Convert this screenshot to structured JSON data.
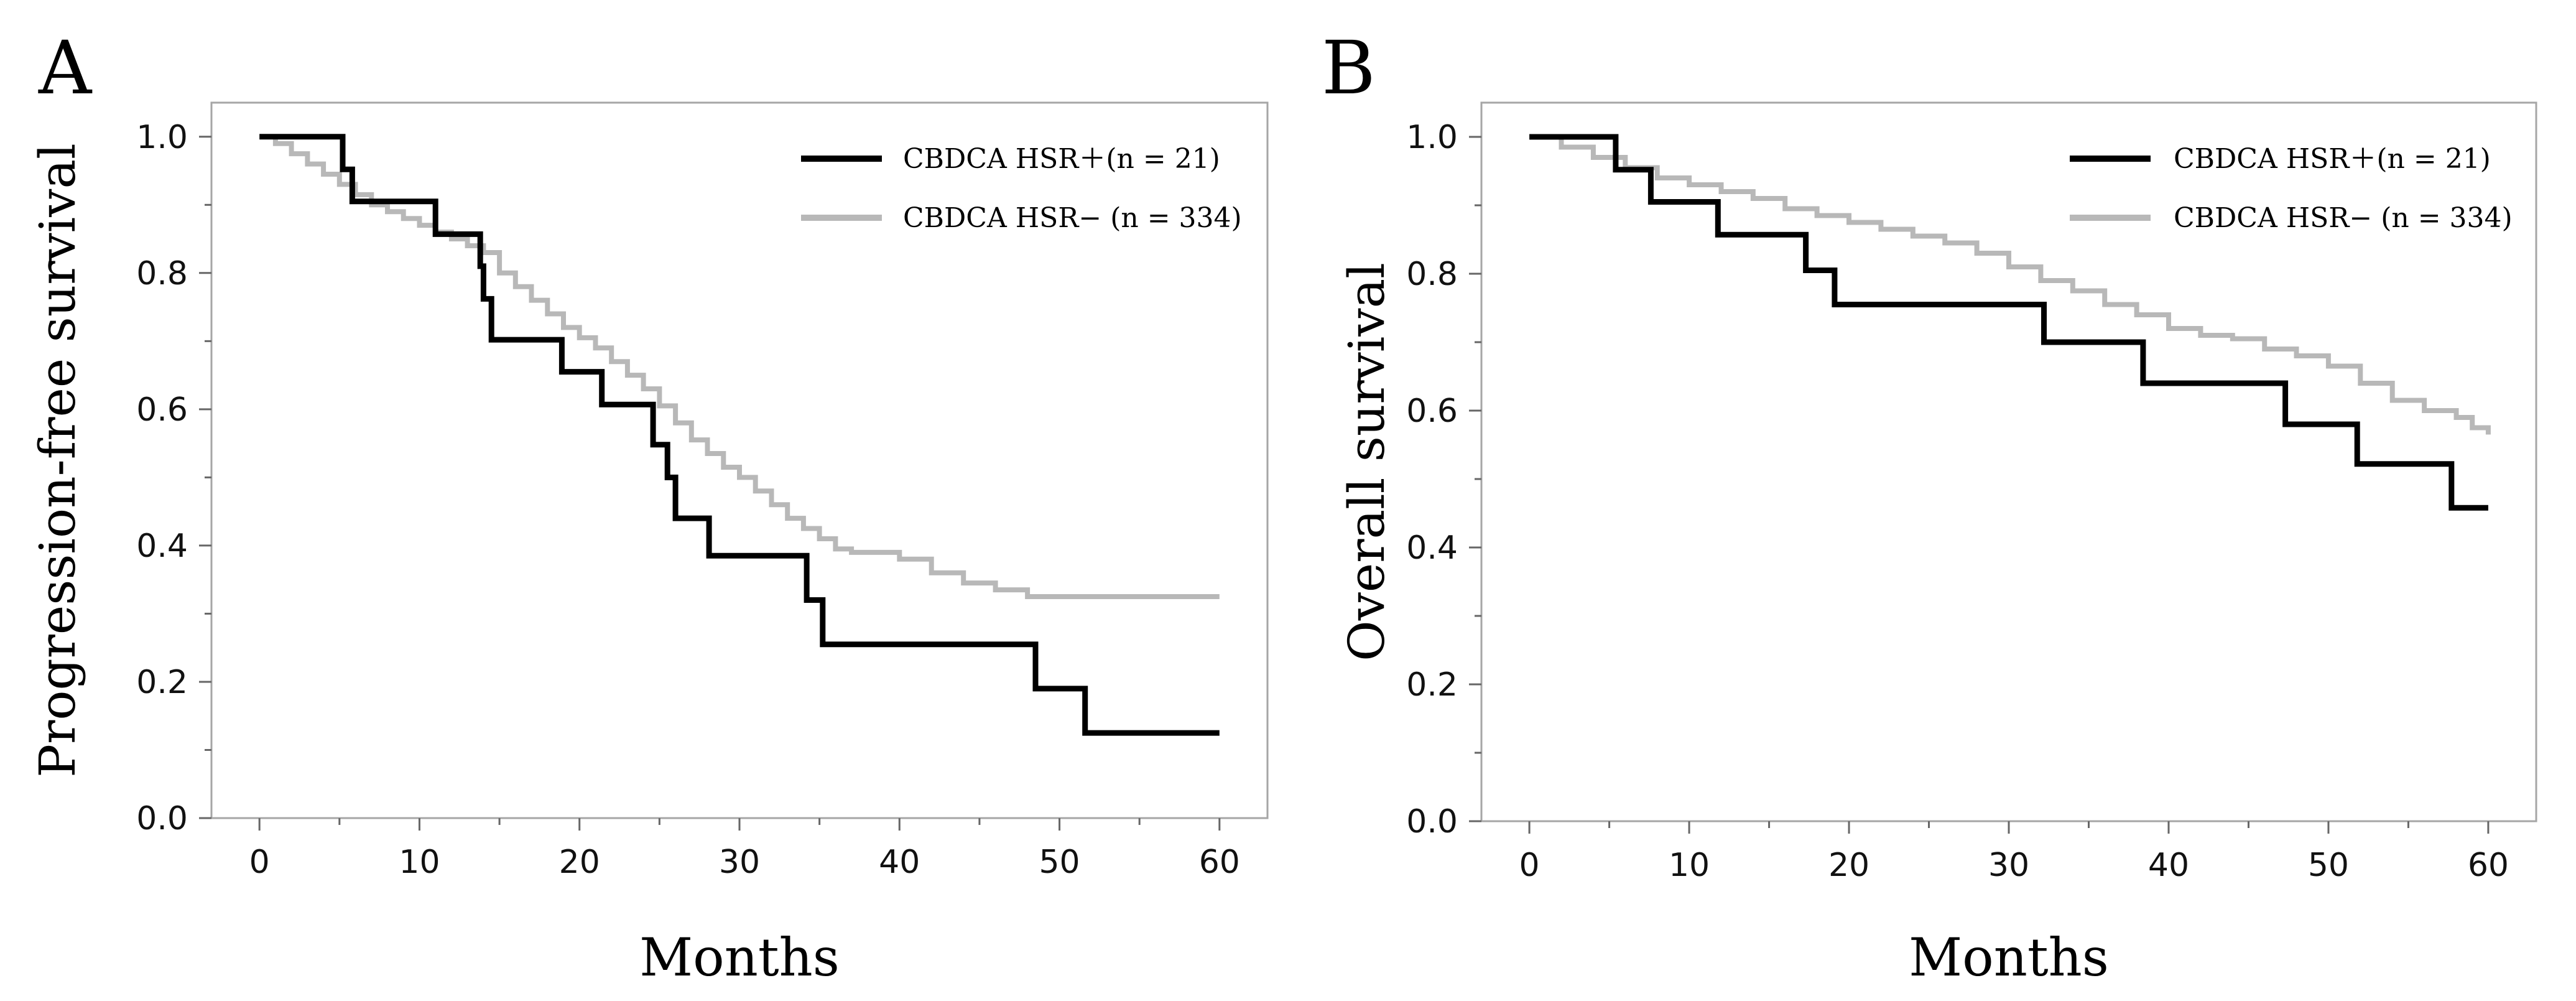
{
  "chart_data": [
    {
      "type": "line",
      "panel_label": "A",
      "xlabel": "Months",
      "ylabel": "Progression-free survival",
      "xlim": [
        -3,
        63
      ],
      "ylim": [
        0,
        1.05
      ],
      "xticks": [
        0,
        10,
        20,
        30,
        40,
        50,
        60
      ],
      "xtick_labels": [
        "0",
        "10",
        "20",
        "30",
        "40",
        "50",
        "60"
      ],
      "yticks": [
        0,
        0.2,
        0.4,
        0.6,
        0.8,
        1.0
      ],
      "ytick_labels": [
        "0.0",
        "0.2",
        "0.4",
        "0.6",
        "0.8",
        "1.0"
      ],
      "legend_position": "top-right",
      "series": [
        {
          "name": "CBDCA HSR＋(n = 21)",
          "color": "#000000",
          "step": true,
          "x": [
            0,
            5.2,
            5.2,
            5.8,
            5.8,
            11,
            11,
            13.8,
            13.8,
            14,
            14,
            14.5,
            14.5,
            18.9,
            18.9,
            21.4,
            21.4,
            24.6,
            24.6,
            25.5,
            25.5,
            26,
            26,
            28.1,
            28.1,
            34.2,
            34.2,
            35.2,
            35.2,
            48.5,
            48.5,
            51.6,
            51.6,
            60
          ],
          "y": [
            1.0,
            1.0,
            0.952,
            0.952,
            0.905,
            0.905,
            0.857,
            0.857,
            0.81,
            0.81,
            0.762,
            0.762,
            0.702,
            0.702,
            0.655,
            0.655,
            0.607,
            0.607,
            0.548,
            0.548,
            0.5,
            0.5,
            0.44,
            0.44,
            0.385,
            0.385,
            0.32,
            0.32,
            0.255,
            0.255,
            0.19,
            0.19,
            0.125,
            0.125
          ]
        },
        {
          "name": "CBDCA HSR−  (n = 334)",
          "color": "#b8b8b8",
          "step": true,
          "x": [
            0,
            1,
            2,
            3,
            4,
            5,
            6,
            7,
            8,
            9,
            10,
            11,
            12,
            13,
            14,
            15,
            16,
            17,
            18,
            19,
            20,
            21,
            22,
            23,
            24,
            25,
            26,
            27,
            28,
            29,
            30,
            31,
            32,
            33,
            34,
            35,
            36,
            37,
            38,
            40,
            42,
            44,
            46,
            48,
            50,
            55,
            60
          ],
          "y": [
            1.0,
            0.99,
            0.975,
            0.96,
            0.945,
            0.93,
            0.915,
            0.9,
            0.89,
            0.88,
            0.87,
            0.86,
            0.85,
            0.84,
            0.83,
            0.8,
            0.78,
            0.76,
            0.74,
            0.72,
            0.705,
            0.69,
            0.67,
            0.65,
            0.63,
            0.605,
            0.58,
            0.555,
            0.535,
            0.515,
            0.5,
            0.48,
            0.46,
            0.44,
            0.425,
            0.41,
            0.395,
            0.39,
            0.39,
            0.38,
            0.36,
            0.345,
            0.335,
            0.325,
            0.325,
            0.325,
            0.325
          ]
        }
      ]
    },
    {
      "type": "line",
      "panel_label": "B",
      "xlabel": "Months",
      "ylabel": "Overall survival",
      "xlim": [
        -3,
        63
      ],
      "ylim": [
        0,
        1.05
      ],
      "xticks": [
        0,
        10,
        20,
        30,
        40,
        50,
        60
      ],
      "xtick_labels": [
        "0",
        "10",
        "20",
        "30",
        "40",
        "50",
        "60"
      ],
      "yticks": [
        0,
        0.2,
        0.4,
        0.6,
        0.8,
        1.0
      ],
      "ytick_labels": [
        "0.0",
        "0.2",
        "0.4",
        "0.6",
        "0.8",
        "1.0"
      ],
      "legend_position": "top-right",
      "series": [
        {
          "name": "CBDCA HSR＋(n = 21)",
          "color": "#000000",
          "step": true,
          "x": [
            0,
            5.4,
            5.4,
            7.6,
            7.6,
            11.8,
            11.8,
            17.3,
            17.3,
            19.1,
            19.1,
            32.2,
            32.2,
            38.4,
            38.4,
            47.3,
            47.3,
            51.8,
            51.8,
            57.7,
            57.7,
            60
          ],
          "y": [
            1.0,
            1.0,
            0.952,
            0.952,
            0.905,
            0.905,
            0.857,
            0.857,
            0.805,
            0.805,
            0.755,
            0.755,
            0.7,
            0.7,
            0.64,
            0.64,
            0.58,
            0.58,
            0.522,
            0.522,
            0.458,
            0.458
          ]
        },
        {
          "name": "CBDCA HSR−  (n = 334)",
          "color": "#b8b8b8",
          "step": true,
          "x": [
            0,
            2,
            4,
            6,
            8,
            10,
            12,
            14,
            16,
            18,
            20,
            22,
            24,
            26,
            28,
            30,
            32,
            34,
            36,
            38,
            40,
            42,
            44,
            46,
            48,
            50,
            52,
            54,
            56,
            58,
            59,
            60
          ],
          "y": [
            1.0,
            0.985,
            0.97,
            0.955,
            0.94,
            0.93,
            0.92,
            0.91,
            0.895,
            0.885,
            0.875,
            0.865,
            0.855,
            0.845,
            0.83,
            0.81,
            0.79,
            0.775,
            0.755,
            0.74,
            0.72,
            0.71,
            0.705,
            0.69,
            0.68,
            0.665,
            0.64,
            0.615,
            0.6,
            0.59,
            0.575,
            0.565
          ]
        }
      ]
    }
  ]
}
